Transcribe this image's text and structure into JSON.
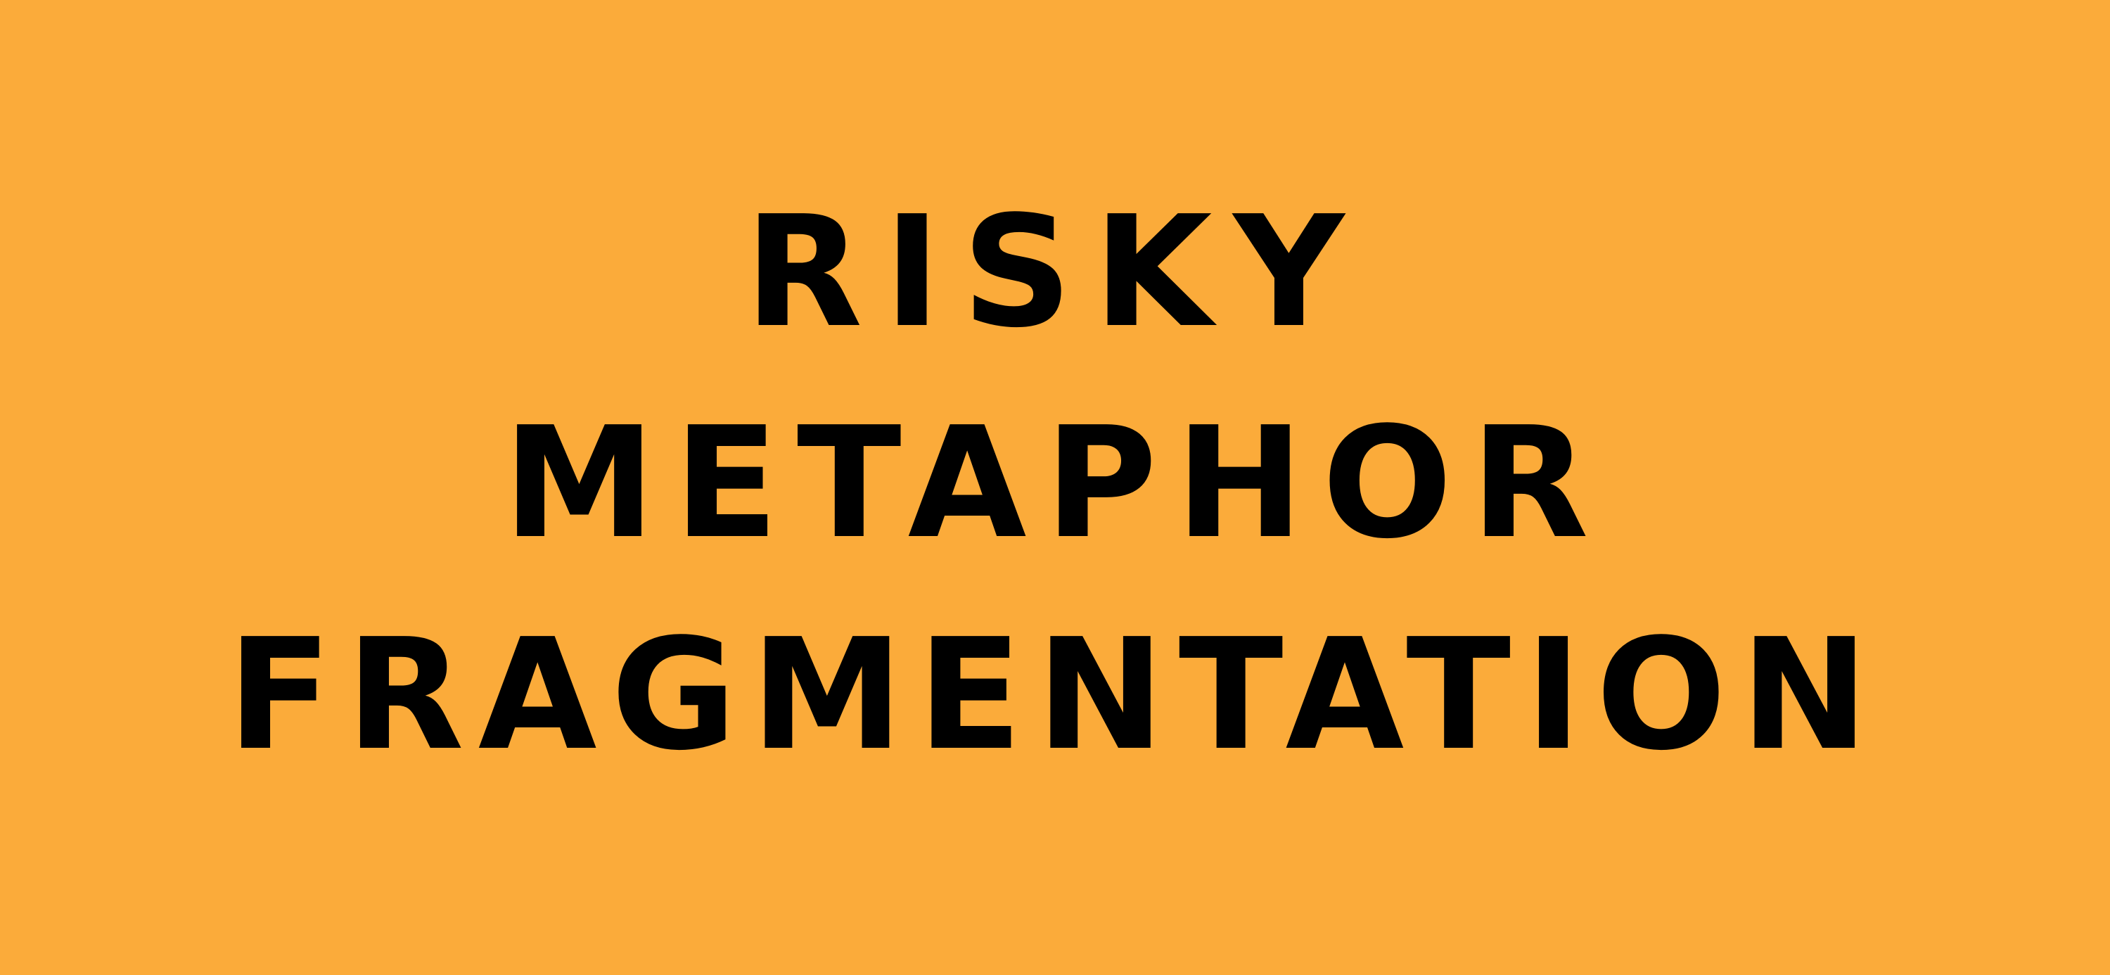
{
  "background_color": "#FBAB3A",
  "text_color": "#000000",
  "title": {
    "line1": "RISKY",
    "line2": "METAPHOR",
    "line3": "FRAGMENTATION"
  }
}
